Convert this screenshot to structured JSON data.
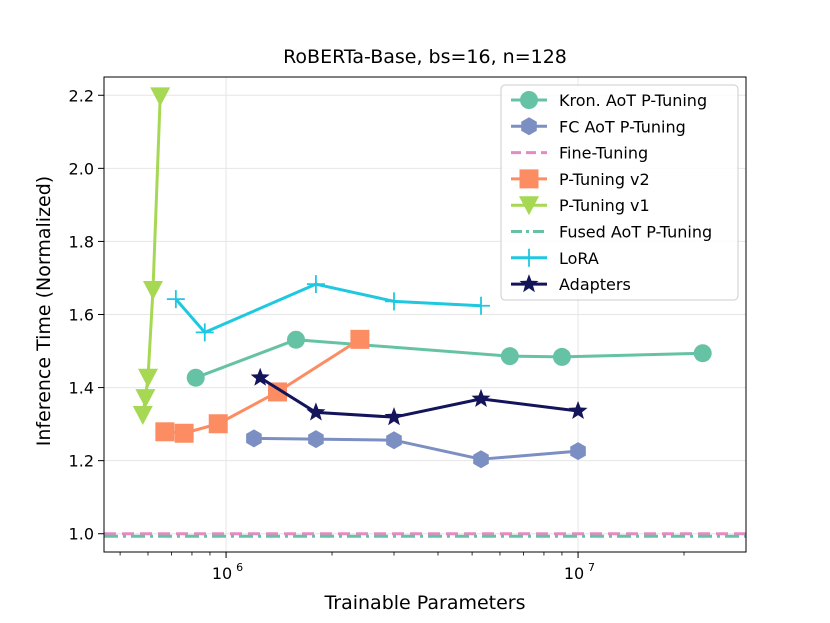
{
  "chart_data": {
    "type": "line",
    "title": "RoBERTa-Base, bs=16, n=128",
    "xlabel": "Trainable Parameters",
    "ylabel": "Inference Time (Normalized)",
    "xscale": "log",
    "xlim": [
      450000,
      30000000
    ],
    "ylim": [
      0.95,
      2.25
    ],
    "yticks": [
      1.0,
      1.2,
      1.4,
      1.6,
      1.8,
      2.0,
      2.2
    ],
    "ytick_labels": [
      "1.0",
      "1.2",
      "1.4",
      "1.6",
      "1.8",
      "2.0",
      "2.2"
    ],
    "xticks": [
      1000000,
      10000000
    ],
    "xtick_labels": [
      {
        "base": "10",
        "exp": "6"
      },
      {
        "base": "10",
        "exp": "7"
      }
    ],
    "grid": true,
    "legend_position": "upper right",
    "series": [
      {
        "name": "Kron. AoT P-Tuning",
        "color": "#66c2a5",
        "marker": "circle",
        "linestyle": "solid",
        "x": [
          820000,
          1580000,
          6400000,
          9000000,
          22600000
        ],
        "y": [
          1.427,
          1.531,
          1.486,
          1.484,
          1.494
        ]
      },
      {
        "name": "FC AoT P-Tuning",
        "color": "#7b8fc2",
        "marker": "hexagon",
        "linestyle": "solid",
        "x": [
          1200000,
          1800000,
          3000000,
          5300000,
          10000000
        ],
        "y": [
          1.261,
          1.259,
          1.256,
          1.204,
          1.226
        ]
      },
      {
        "name": "Fine-Tuning",
        "color": "#e78ac3",
        "marker": "none",
        "linestyle": "dashed",
        "hline": true,
        "y": [
          1.0
        ]
      },
      {
        "name": "P-Tuning v2",
        "color": "#fc8d62",
        "marker": "square",
        "linestyle": "solid",
        "x": [
          670000,
          760000,
          950000,
          1400000,
          2400000
        ],
        "y": [
          1.279,
          1.275,
          1.301,
          1.388,
          1.532
        ]
      },
      {
        "name": "P-Tuning v1",
        "color": "#a6d854",
        "marker": "triangle-down",
        "linestyle": "solid",
        "x": [
          580000,
          590000,
          600000,
          620000,
          650000
        ],
        "y": [
          1.325,
          1.371,
          1.427,
          1.667,
          2.197
        ]
      },
      {
        "name": "Fused AoT P-Tuning",
        "color": "#66c2a5",
        "marker": "none",
        "linestyle": "dashdot",
        "hline": true,
        "y": [
          0.993
        ]
      },
      {
        "name": "LoRA",
        "color": "#1ec8e0",
        "marker": "plus",
        "linestyle": "solid",
        "x": [
          720000,
          870000,
          1800000,
          3000000,
          5300000
        ],
        "y": [
          1.642,
          1.551,
          1.683,
          1.636,
          1.624
        ]
      },
      {
        "name": "Adapters",
        "color": "#14145a",
        "marker": "star",
        "linestyle": "solid",
        "x": [
          1250000,
          1800000,
          3000000,
          5300000,
          10000000
        ],
        "y": [
          1.427,
          1.332,
          1.319,
          1.369,
          1.336
        ]
      }
    ]
  }
}
